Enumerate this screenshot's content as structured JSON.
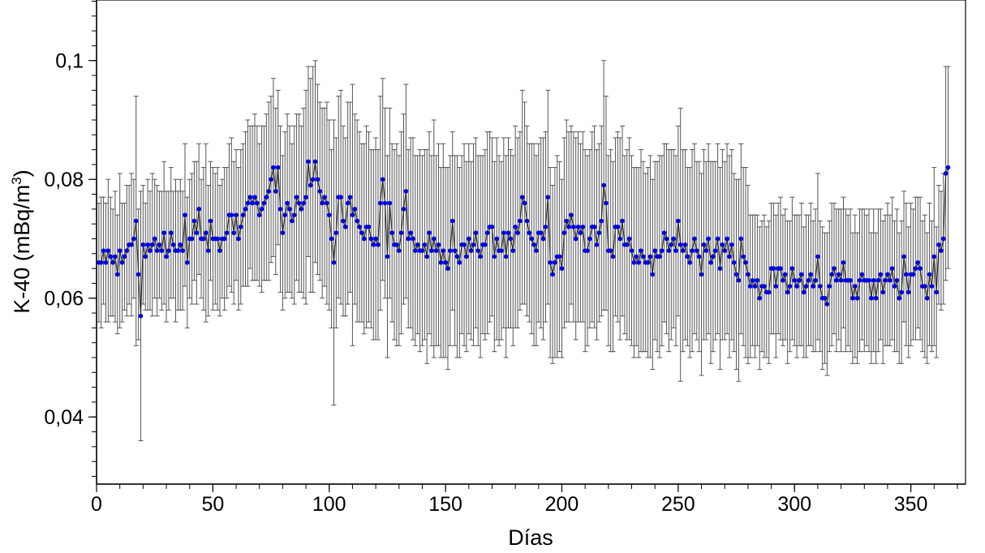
{
  "chart_data": {
    "type": "scatter",
    "title": "",
    "xlabel": "Días",
    "ylabel_main": "K-40 (mBq/m",
    "ylabel_sup": "3",
    "ylabel_end": ")",
    "xlim": [
      0,
      373.5
    ],
    "ylim": [
      0.0287,
      0.1102
    ],
    "xticks": [
      0,
      50,
      100,
      150,
      200,
      250,
      300,
      350
    ],
    "xtick_labels": [
      "0",
      "50",
      "100",
      "150",
      "200",
      "250",
      "300",
      "350"
    ],
    "yticks": [
      0.04,
      0.06,
      0.08,
      0.1
    ],
    "ytick_labels": [
      "0,04",
      "0,06",
      "0,08",
      "0,1"
    ],
    "grid": false,
    "legend": "none",
    "series": [
      {
        "name": "K-40",
        "color": "#0000e0",
        "line_color": "#222222",
        "errorbar_color": "#555555",
        "x_start": 1,
        "values": [
          0.066,
          0.066,
          0.068,
          0.066,
          0.068,
          0.067,
          0.066,
          0.067,
          0.064,
          0.068,
          0.066,
          0.067,
          0.068,
          0.069,
          0.069,
          0.07,
          0.073,
          0.064,
          0.057,
          0.069,
          0.067,
          0.069,
          0.068,
          0.069,
          0.07,
          0.068,
          0.069,
          0.068,
          0.071,
          0.067,
          0.068,
          0.071,
          0.069,
          0.068,
          0.068,
          0.069,
          0.068,
          0.074,
          0.066,
          0.07,
          0.07,
          0.073,
          0.071,
          0.075,
          0.07,
          0.07,
          0.071,
          0.068,
          0.073,
          0.07,
          0.07,
          0.07,
          0.068,
          0.07,
          0.07,
          0.071,
          0.074,
          0.074,
          0.071,
          0.074,
          0.07,
          0.072,
          0.074,
          0.075,
          0.076,
          0.077,
          0.076,
          0.077,
          0.076,
          0.074,
          0.075,
          0.076,
          0.077,
          0.078,
          0.08,
          0.082,
          0.078,
          0.082,
          0.075,
          0.071,
          0.074,
          0.076,
          0.075,
          0.073,
          0.074,
          0.077,
          0.076,
          0.075,
          0.076,
          0.077,
          0.083,
          0.079,
          0.08,
          0.083,
          0.08,
          0.078,
          0.076,
          0.077,
          0.076,
          0.074,
          0.07,
          0.066,
          0.071,
          0.077,
          0.077,
          0.073,
          0.072,
          0.076,
          0.077,
          0.074,
          0.075,
          0.073,
          0.072,
          0.071,
          0.07,
          0.072,
          0.072,
          0.07,
          0.069,
          0.07,
          0.069,
          0.076,
          0.08,
          0.076,
          0.067,
          0.076,
          0.071,
          0.069,
          0.069,
          0.068,
          0.071,
          0.075,
          0.078,
          0.07,
          0.071,
          0.07,
          0.068,
          0.069,
          0.068,
          0.068,
          0.069,
          0.067,
          0.071,
          0.068,
          0.07,
          0.068,
          0.069,
          0.066,
          0.068,
          0.066,
          0.065,
          0.068,
          0.073,
          0.068,
          0.067,
          0.066,
          0.069,
          0.069,
          0.067,
          0.07,
          0.068,
          0.069,
          0.071,
          0.068,
          0.067,
          0.069,
          0.069,
          0.071,
          0.072,
          0.072,
          0.067,
          0.07,
          0.068,
          0.068,
          0.071,
          0.067,
          0.071,
          0.07,
          0.068,
          0.072,
          0.071,
          0.073,
          0.077,
          0.076,
          0.073,
          0.071,
          0.07,
          0.069,
          0.068,
          0.071,
          0.071,
          0.07,
          0.072,
          0.077,
          0.066,
          0.064,
          0.066,
          0.067,
          0.067,
          0.065,
          0.071,
          0.073,
          0.072,
          0.074,
          0.072,
          0.07,
          0.072,
          0.071,
          0.072,
          0.068,
          0.068,
          0.07,
          0.072,
          0.072,
          0.069,
          0.071,
          0.073,
          0.079,
          0.076,
          0.068,
          0.068,
          0.067,
          0.072,
          0.072,
          0.07,
          0.073,
          0.069,
          0.069,
          0.07,
          0.068,
          0.066,
          0.067,
          0.066,
          0.068,
          0.067,
          0.066,
          0.066,
          0.067,
          0.064,
          0.068,
          0.067,
          0.067,
          0.068,
          0.071,
          0.07,
          0.068,
          0.069,
          0.07,
          0.068,
          0.073,
          0.069,
          0.068,
          0.069,
          0.067,
          0.066,
          0.068,
          0.07,
          0.068,
          0.067,
          0.064,
          0.069,
          0.068,
          0.07,
          0.066,
          0.067,
          0.068,
          0.07,
          0.065,
          0.069,
          0.068,
          0.07,
          0.067,
          0.069,
          0.066,
          0.064,
          0.063,
          0.07,
          0.067,
          0.066,
          0.064,
          0.062,
          0.063,
          0.062,
          0.063,
          0.06,
          0.062,
          0.062,
          0.061,
          0.061,
          0.065,
          0.065,
          0.062,
          0.065,
          0.065,
          0.063,
          0.064,
          0.061,
          0.062,
          0.065,
          0.063,
          0.062,
          0.063,
          0.064,
          0.061,
          0.062,
          0.063,
          0.064,
          0.062,
          0.063,
          0.067,
          0.062,
          0.06,
          0.06,
          0.059,
          0.062,
          0.064,
          0.065,
          0.063,
          0.064,
          0.063,
          0.066,
          0.063,
          0.063,
          0.063,
          0.06,
          0.062,
          0.06,
          0.063,
          0.064,
          0.063,
          0.063,
          0.063,
          0.06,
          0.063,
          0.06,
          0.063,
          0.064,
          0.061,
          0.063,
          0.064,
          0.063,
          0.065,
          0.062,
          0.063,
          0.06,
          0.061,
          0.067,
          0.064,
          0.061,
          0.064,
          0.064,
          0.065,
          0.066,
          0.065,
          0.062,
          0.062,
          0.06,
          0.064,
          0.062,
          0.067,
          0.061,
          0.069,
          0.068,
          0.07,
          0.081,
          0.082
        ],
        "errors": [
          0.01,
          0.011,
          0.009,
          0.01,
          0.012,
          0.01,
          0.009,
          0.011,
          0.01,
          0.013,
          0.01,
          0.009,
          0.011,
          0.01,
          0.012,
          0.01,
          0.021,
          0.011,
          0.021,
          0.01,
          0.009,
          0.011,
          0.01,
          0.012,
          0.01,
          0.011,
          0.009,
          0.01,
          0.012,
          0.011,
          0.01,
          0.011,
          0.009,
          0.012,
          0.01,
          0.011,
          0.01,
          0.012,
          0.011,
          0.01,
          0.011,
          0.01,
          0.012,
          0.011,
          0.01,
          0.012,
          0.015,
          0.011,
          0.01,
          0.012,
          0.011,
          0.012,
          0.011,
          0.01,
          0.012,
          0.011,
          0.012,
          0.013,
          0.012,
          0.011,
          0.012,
          0.013,
          0.012,
          0.013,
          0.014,
          0.012,
          0.013,
          0.014,
          0.013,
          0.012,
          0.014,
          0.013,
          0.014,
          0.015,
          0.014,
          0.015,
          0.014,
          0.013,
          0.014,
          0.013,
          0.014,
          0.015,
          0.014,
          0.013,
          0.015,
          0.014,
          0.015,
          0.014,
          0.016,
          0.018,
          0.016,
          0.018,
          0.019,
          0.017,
          0.016,
          0.015,
          0.016,
          0.015,
          0.017,
          0.016,
          0.015,
          0.024,
          0.016,
          0.017,
          0.018,
          0.016,
          0.015,
          0.017,
          0.016,
          0.022,
          0.016,
          0.017,
          0.016,
          0.015,
          0.016,
          0.017,
          0.016,
          0.015,
          0.016,
          0.017,
          0.016,
          0.018,
          0.017,
          0.016,
          0.017,
          0.016,
          0.015,
          0.016,
          0.017,
          0.016,
          0.017,
          0.016,
          0.018,
          0.015,
          0.016,
          0.017,
          0.016,
          0.015,
          0.017,
          0.016,
          0.016,
          0.018,
          0.017,
          0.016,
          0.02,
          0.016,
          0.017,
          0.016,
          0.018,
          0.016,
          0.017,
          0.016,
          0.015,
          0.016,
          0.017,
          0.016,
          0.015,
          0.017,
          0.016,
          0.016,
          0.015,
          0.017,
          0.016,
          0.016,
          0.017,
          0.015,
          0.016,
          0.017,
          0.016,
          0.015,
          0.016,
          0.017,
          0.016,
          0.015,
          0.016,
          0.017,
          0.016,
          0.015,
          0.016,
          0.017,
          0.016,
          0.015,
          0.018,
          0.017,
          0.016,
          0.015,
          0.016,
          0.017,
          0.016,
          0.015,
          0.016,
          0.017,
          0.016,
          0.018,
          0.016,
          0.015,
          0.016,
          0.017,
          0.016,
          0.015,
          0.016,
          0.017,
          0.016,
          0.015,
          0.016,
          0.017,
          0.016,
          0.015,
          0.016,
          0.017,
          0.016,
          0.015,
          0.016,
          0.017,
          0.016,
          0.015,
          0.016,
          0.021,
          0.018,
          0.016,
          0.017,
          0.016,
          0.015,
          0.016,
          0.017,
          0.016,
          0.015,
          0.016,
          0.017,
          0.016,
          0.016,
          0.015,
          0.016,
          0.017,
          0.016,
          0.015,
          0.016,
          0.017,
          0.016,
          0.015,
          0.016,
          0.017,
          0.016,
          0.015,
          0.016,
          0.017,
          0.016,
          0.015,
          0.016,
          0.016,
          0.023,
          0.017,
          0.016,
          0.015,
          0.016,
          0.017,
          0.016,
          0.015,
          0.016,
          0.017,
          0.016,
          0.015,
          0.016,
          0.017,
          0.016,
          0.015,
          0.016,
          0.017,
          0.016,
          0.015,
          0.016,
          0.017,
          0.016,
          0.015,
          0.016,
          0.017,
          0.016,
          0.015,
          0.016,
          0.015,
          0.012,
          0.011,
          0.012,
          0.011,
          0.012,
          0.011,
          0.012,
          0.011,
          0.012,
          0.011,
          0.011,
          0.012,
          0.011,
          0.012,
          0.011,
          0.011,
          0.012,
          0.011,
          0.012,
          0.011,
          0.012,
          0.011,
          0.012,
          0.011,
          0.012,
          0.011,
          0.012,
          0.011,
          0.012,
          0.014,
          0.011,
          0.012,
          0.011,
          0.012,
          0.011,
          0.012,
          0.011,
          0.012,
          0.011,
          0.012,
          0.011,
          0.012,
          0.011,
          0.012,
          0.011,
          0.012,
          0.011,
          0.012,
          0.011,
          0.012,
          0.011,
          0.012,
          0.011,
          0.012,
          0.011,
          0.012,
          0.011,
          0.012,
          0.011,
          0.012,
          0.011,
          0.012,
          0.011,
          0.012,
          0.011,
          0.012,
          0.011,
          0.012,
          0.011,
          0.012,
          0.011,
          0.012,
          0.011,
          0.012,
          0.011,
          0.012,
          0.011,
          0.012,
          0.011,
          0.015,
          0.011,
          0.01,
          0.01,
          0.011,
          0.018,
          0.017
        ]
      }
    ]
  }
}
